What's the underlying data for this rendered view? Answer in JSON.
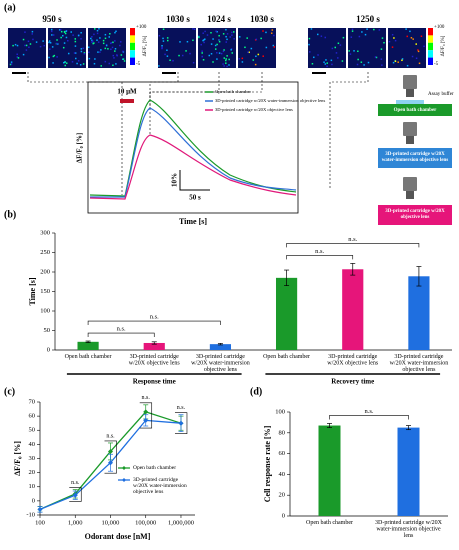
{
  "panel_a": {
    "label": "(a)",
    "times": [
      "950 s",
      "1030 s",
      "1024 s",
      "1030 s",
      "1250 s"
    ],
    "colorbar": {
      "max": "+100",
      "min": "-5",
      "label": "ΔF/F₀ [%]"
    },
    "stimulus": "10 μM",
    "ylabel": "ΔF/F₀ [%]",
    "xlabel": "Time [s]",
    "scale_y": "10%",
    "scale_x": "50 s",
    "legend": [
      {
        "name": "Open bath chamber",
        "color": "#1a9a2a"
      },
      {
        "name": "3D-printed cartridge w/20X water-immersion objective lens",
        "color": "#2f6fd6"
      },
      {
        "name": "3D-printed cartridge w/20X objective lens",
        "color": "#e0197a"
      }
    ],
    "schematic": {
      "buffer": "Assay buffer",
      "labels": [
        "Open bath chamber",
        "3D-printed cartridge w/20X water-immersion objective lens",
        "3D-printed cartridge w/20X objective lens"
      ],
      "colors": [
        "#1a9a2a",
        "#2f86d6",
        "#e6157a"
      ]
    }
  },
  "chart_data": [
    {
      "label": "(b)",
      "type": "bar",
      "ylabel": "Time [s]",
      "categories": [
        "Open bath chamber",
        "3D-printed cartridge w/20X objective lens",
        "3D-printed cartridge w/20X water-immersion objective lens",
        "Open bath chamber",
        "3D-printed cartridge w/20X objective lens",
        "3D-printed cartridge w/20X water-immersion objective lens"
      ],
      "values": [
        21,
        18,
        15,
        185,
        207,
        189
      ],
      "errors": [
        2,
        3,
        2,
        20,
        15,
        25
      ],
      "colors": [
        "#1a9a2a",
        "#e6157a",
        "#1f6fe0",
        "#1a9a2a",
        "#e6157a",
        "#1f6fe0"
      ],
      "ylim": [
        0,
        300
      ],
      "yticks": [
        0,
        50,
        100,
        150,
        200,
        250,
        300
      ],
      "group_labels": [
        "Response time",
        "Recovery time"
      ],
      "comparisons": [
        {
          "pair": [
            0,
            1
          ],
          "label": "n.s."
        },
        {
          "pair": [
            0,
            2
          ],
          "label": "n.s."
        },
        {
          "pair": [
            3,
            4
          ],
          "label": "n.s."
        },
        {
          "pair": [
            3,
            5
          ],
          "label": "n.s."
        }
      ]
    },
    {
      "label": "(c)",
      "type": "line",
      "xlabel": "Odorant dose [nM]",
      "ylabel": "ΔF/F₀ [%]",
      "log_x": true,
      "x": [
        100,
        1000,
        10000,
        100000,
        1000000
      ],
      "series": [
        {
          "name": "Open bath chamber",
          "color": "#1a9a2a",
          "values": [
            -6,
            5,
            35,
            63,
            55
          ],
          "errors": [
            2,
            3,
            6,
            5,
            5
          ]
        },
        {
          "name": "3D-printed cartridge w/20X water-immersion objective lens",
          "color": "#1f6fe0",
          "values": [
            -6,
            4,
            27,
            57,
            55
          ],
          "errors": [
            2,
            3,
            6,
            4,
            6
          ]
        }
      ],
      "xlim": [
        100,
        2500000
      ],
      "xticks": [
        100,
        {
          "value": 1000,
          "label": "1,000"
        },
        {
          "value": 10000,
          "label": "10,000"
        },
        {
          "value": 100000,
          "label": "100,000"
        },
        {
          "value": 1000000,
          "label": "1,000,000"
        }
      ],
      "ylim": [
        -10,
        70
      ],
      "yticks": [
        -10,
        0,
        10,
        20,
        30,
        40,
        50,
        60,
        70
      ],
      "comparisons": [
        {
          "index": 1,
          "label": "n.s."
        },
        {
          "index": 2,
          "label": "n.s."
        },
        {
          "index": 3,
          "label": "n.s."
        },
        {
          "index": 4,
          "label": "n.s."
        }
      ]
    },
    {
      "label": "(d)",
      "type": "bar",
      "ylabel": "Cell response rate [%]",
      "categories": [
        "Open bath chamber",
        "3D-printed cartridge w/20X water-immersion objective lens"
      ],
      "values": [
        87,
        85
      ],
      "errors": [
        2,
        2
      ],
      "colors": [
        "#1a9a2a",
        "#1f6fe0"
      ],
      "ylim": [
        0,
        100
      ],
      "yticks": [
        0,
        20,
        40,
        60,
        80,
        100
      ],
      "comparisons": [
        {
          "pair": [
            0,
            1
          ],
          "label": "n.s."
        }
      ]
    }
  ]
}
